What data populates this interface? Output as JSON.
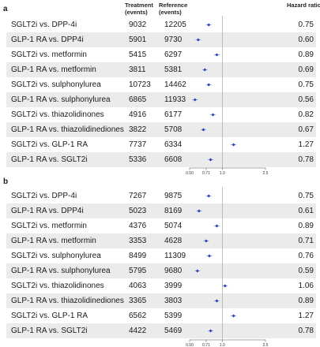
{
  "header": {
    "treatment": "Treatment\n(events)",
    "reference": "Reference\n(events)",
    "hazard_ratio": "Hazard ratio"
  },
  "chart_data": [
    {
      "panel": "a",
      "type": "forest",
      "xscale": "log",
      "xlim": [
        0.5,
        2.5
      ],
      "xticks": [
        "0.50",
        "0.71",
        "1.0",
        "2.5"
      ],
      "reference_line": 1.0,
      "marker_color": "#2b3fb5",
      "rows": [
        {
          "label": "SGLT2i vs. DPP-4i",
          "treatment": "9032",
          "reference": "12205",
          "hr": 0.75,
          "hr_text": "0.75"
        },
        {
          "label": "GLP-1 RA vs. DPP4i",
          "treatment": "5901",
          "reference": "9730",
          "hr": 0.6,
          "hr_text": "0.60"
        },
        {
          "label": "SGLT2i vs. metformin",
          "treatment": "5415",
          "reference": "6297",
          "hr": 0.89,
          "hr_text": "0.89"
        },
        {
          "label": "GLP-1 RA vs. metformin",
          "treatment": "3811",
          "reference": "5381",
          "hr": 0.69,
          "hr_text": "0.69"
        },
        {
          "label": "SGLT2i vs. sulphonylurea",
          "treatment": "10723",
          "reference": "14462",
          "hr": 0.75,
          "hr_text": "0.75"
        },
        {
          "label": "GLP-1 RA vs. sulphonylurea",
          "treatment": "6865",
          "reference": "11933",
          "hr": 0.56,
          "hr_text": "0.56"
        },
        {
          "label": "SGLT2i vs. thiazolidinones",
          "treatment": "4916",
          "reference": "6177",
          "hr": 0.82,
          "hr_text": "0.82"
        },
        {
          "label": "GLP-1 RA vs. thiazolidinediones",
          "treatment": "3822",
          "reference": "5708",
          "hr": 0.67,
          "hr_text": "0.67"
        },
        {
          "label": "SGLT2i vs. GLP-1 RA",
          "treatment": "7737",
          "reference": "6334",
          "hr": 1.27,
          "hr_text": "1.27"
        },
        {
          "label": "GLP-1 RA vs. SGLT2i",
          "treatment": "5336",
          "reference": "6608",
          "hr": 0.78,
          "hr_text": "0.78"
        }
      ]
    },
    {
      "panel": "b",
      "type": "forest",
      "xscale": "log",
      "xlim": [
        0.5,
        2.5
      ],
      "xticks": [
        "0.50",
        "0.71",
        "1.0",
        "2.5"
      ],
      "reference_line": 1.0,
      "marker_color": "#2b3fb5",
      "rows": [
        {
          "label": "SGLT2i vs. DPP-4i",
          "treatment": "7267",
          "reference": "9875",
          "hr": 0.75,
          "hr_text": "0.75"
        },
        {
          "label": "GLP-1 RA vs. DPP4i",
          "treatment": "5023",
          "reference": "8169",
          "hr": 0.61,
          "hr_text": "0.61"
        },
        {
          "label": "SGLT2i vs. metformin",
          "treatment": "4376",
          "reference": "5074",
          "hr": 0.89,
          "hr_text": "0.89"
        },
        {
          "label": "GLP-1 RA vs. metformin",
          "treatment": "3353",
          "reference": "4628",
          "hr": 0.71,
          "hr_text": "0.71"
        },
        {
          "label": "SGLT2i vs. sulphonylurea",
          "treatment": "8499",
          "reference": "11309",
          "hr": 0.76,
          "hr_text": "0.76"
        },
        {
          "label": "GLP-1 RA vs. sulphonylurea",
          "treatment": "5795",
          "reference": "9680",
          "hr": 0.59,
          "hr_text": "0.59"
        },
        {
          "label": "SGLT2i vs. thiazolidinones",
          "treatment": "4063",
          "reference": "3999",
          "hr": 1.06,
          "hr_text": "1.06"
        },
        {
          "label": "GLP-1 RA vs. thiazolidinediones",
          "treatment": "3365",
          "reference": "3803",
          "hr": 0.89,
          "hr_text": "0.89"
        },
        {
          "label": "SGLT2i vs. GLP-1 RA",
          "treatment": "6562",
          "reference": "5399",
          "hr": 1.27,
          "hr_text": "1.27"
        },
        {
          "label": "GLP-1 RA vs. SGLT2i",
          "treatment": "4422",
          "reference": "5469",
          "hr": 0.78,
          "hr_text": "0.78"
        }
      ]
    }
  ]
}
